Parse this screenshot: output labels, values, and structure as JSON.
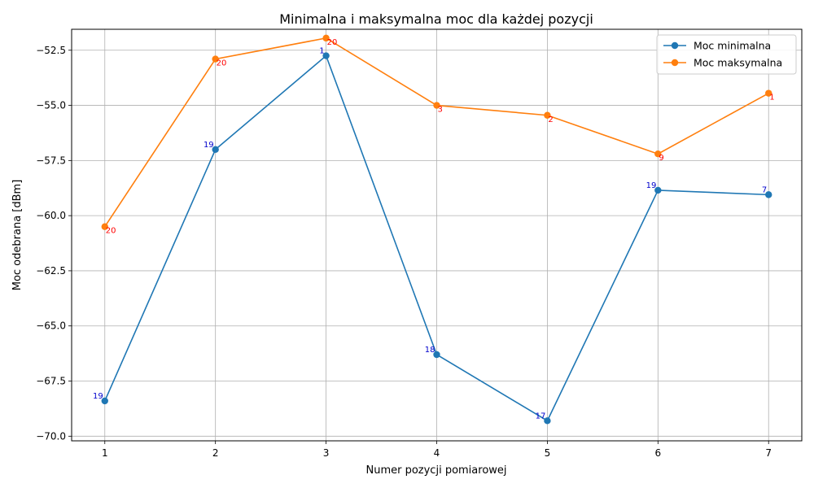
{
  "chart_data": {
    "type": "line",
    "title": "Minimalna i maksymalna moc dla każdej pozycji",
    "xlabel": "Numer pozycji pomiarowej",
    "ylabel": "Moc odebrana [dBm]",
    "x": [
      1,
      2,
      3,
      4,
      5,
      6,
      7
    ],
    "xlim": [
      0.7,
      7.3
    ],
    "ylim": [
      -70.21,
      -51.55
    ],
    "yticks": [
      -70.0,
      -67.5,
      -65.0,
      -62.5,
      -60.0,
      -57.5,
      -55.0,
      -52.5
    ],
    "ytick_labels": [
      "−70.0",
      "−67.5",
      "−65.0",
      "−62.5",
      "−60.0",
      "−57.5",
      "−55.0",
      "−52.5"
    ],
    "grid": true,
    "legend_position": "top-right",
    "series": [
      {
        "name": "Moc minimalna",
        "color": "#1f77b4",
        "label_color": "#0000cc",
        "values": [
          -68.4,
          -57.0,
          -52.75,
          -66.3,
          -69.3,
          -58.85,
          -59.05
        ],
        "point_labels": [
          "19",
          "19",
          "1",
          "18",
          "17",
          "19",
          "7"
        ]
      },
      {
        "name": "Moc maksymalna",
        "color": "#ff7f0e",
        "label_color": "#ff0000",
        "values": [
          -60.5,
          -52.9,
          -51.95,
          -55.0,
          -55.45,
          -57.2,
          -54.45
        ],
        "point_labels": [
          "20",
          "20",
          "20",
          "3",
          "2",
          "9",
          "1"
        ]
      }
    ]
  }
}
